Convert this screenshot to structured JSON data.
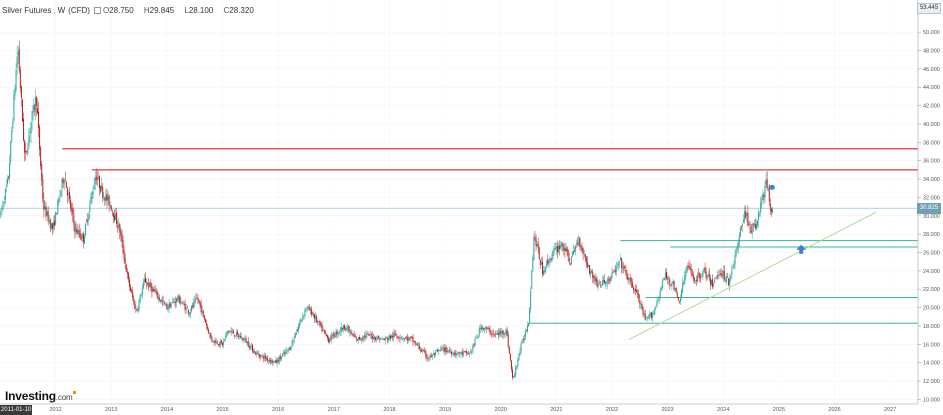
{
  "legend": {
    "instrument": "Silver Futures",
    "interval": "W",
    "source": "(CFD)",
    "open_label": "O",
    "open": "28.750",
    "high_label": "H",
    "high": "29.845",
    "low_label": "L",
    "low": "28.100",
    "close_label": "C",
    "close": "28.320"
  },
  "logo": {
    "text": "Investing",
    "suffix": ".com"
  },
  "price_tags": {
    "top": "53.445",
    "current": "30.825"
  },
  "cursor_date": "2011-01-10",
  "colors": {
    "up": "#26a69a",
    "down": "#b71c1c",
    "resistance": "#e0383e",
    "support": "#3cb39b",
    "trendline": "#b5d89a",
    "current_price_line": "#7fb7c3",
    "arrow": "#3d82c8"
  },
  "chart_data": {
    "type": "candlestick",
    "interval": "weekly",
    "x_ticks": [
      "2012",
      "2013",
      "2014",
      "2015",
      "2016",
      "2017",
      "2018",
      "2019",
      "2020",
      "2021",
      "2022",
      "2023",
      "2024",
      "2025",
      "2026",
      "2027"
    ],
    "y_ticks": [
      "10.000",
      "12.000",
      "14.000",
      "16.000",
      "18.000",
      "20.000",
      "22.000",
      "24.000",
      "26.000",
      "28.000",
      "30.000",
      "32.000",
      "34.000",
      "36.000",
      "38.000",
      "40.000",
      "42.000",
      "44.000",
      "46.000",
      "48.000",
      "50.000"
    ],
    "ylim": [
      9.5,
      53.5
    ],
    "xlim": [
      2011.0,
      2027.5
    ],
    "series": [
      {
        "values": [
          {
            "t": 2011.0,
            "v": 30.0
          },
          {
            "t": 2011.15,
            "v": 34.0
          },
          {
            "t": 2011.32,
            "v": 48.5
          },
          {
            "t": 2011.45,
            "v": 36.0
          },
          {
            "t": 2011.55,
            "v": 40.0
          },
          {
            "t": 2011.65,
            "v": 43.0
          },
          {
            "t": 2011.78,
            "v": 31.0
          },
          {
            "t": 2011.95,
            "v": 28.5
          },
          {
            "t": 2012.15,
            "v": 34.5
          },
          {
            "t": 2012.35,
            "v": 28.5
          },
          {
            "t": 2012.5,
            "v": 27.5
          },
          {
            "t": 2012.72,
            "v": 34.5
          },
          {
            "t": 2012.85,
            "v": 32.5
          },
          {
            "t": 2013.0,
            "v": 31.0
          },
          {
            "t": 2013.15,
            "v": 28.5
          },
          {
            "t": 2013.3,
            "v": 23.0
          },
          {
            "t": 2013.45,
            "v": 19.5
          },
          {
            "t": 2013.6,
            "v": 23.0
          },
          {
            "t": 2013.8,
            "v": 21.5
          },
          {
            "t": 2014.0,
            "v": 20.0
          },
          {
            "t": 2014.2,
            "v": 21.0
          },
          {
            "t": 2014.4,
            "v": 19.5
          },
          {
            "t": 2014.55,
            "v": 21.0
          },
          {
            "t": 2014.8,
            "v": 16.5
          },
          {
            "t": 2015.0,
            "v": 16.0
          },
          {
            "t": 2015.1,
            "v": 17.5
          },
          {
            "t": 2015.4,
            "v": 16.5
          },
          {
            "t": 2015.6,
            "v": 15.0
          },
          {
            "t": 2015.95,
            "v": 14.0
          },
          {
            "t": 2016.2,
            "v": 15.5
          },
          {
            "t": 2016.5,
            "v": 20.0
          },
          {
            "t": 2016.6,
            "v": 19.5
          },
          {
            "t": 2016.9,
            "v": 16.5
          },
          {
            "t": 2017.2,
            "v": 18.0
          },
          {
            "t": 2017.4,
            "v": 16.5
          },
          {
            "t": 2017.6,
            "v": 17.0
          },
          {
            "t": 2017.9,
            "v": 16.5
          },
          {
            "t": 2018.1,
            "v": 17.0
          },
          {
            "t": 2018.4,
            "v": 16.5
          },
          {
            "t": 2018.7,
            "v": 14.5
          },
          {
            "t": 2018.95,
            "v": 15.5
          },
          {
            "t": 2019.2,
            "v": 15.0
          },
          {
            "t": 2019.45,
            "v": 15.0
          },
          {
            "t": 2019.65,
            "v": 18.0
          },
          {
            "t": 2019.9,
            "v": 17.0
          },
          {
            "t": 2020.1,
            "v": 17.5
          },
          {
            "t": 2020.22,
            "v": 12.0
          },
          {
            "t": 2020.35,
            "v": 15.5
          },
          {
            "t": 2020.5,
            "v": 18.5
          },
          {
            "t": 2020.6,
            "v": 28.0
          },
          {
            "t": 2020.75,
            "v": 24.0
          },
          {
            "t": 2020.95,
            "v": 26.0
          },
          {
            "t": 2021.1,
            "v": 27.0
          },
          {
            "t": 2021.25,
            "v": 25.0
          },
          {
            "t": 2021.4,
            "v": 27.5
          },
          {
            "t": 2021.6,
            "v": 24.0
          },
          {
            "t": 2021.75,
            "v": 22.5
          },
          {
            "t": 2021.95,
            "v": 23.0
          },
          {
            "t": 2022.15,
            "v": 25.0
          },
          {
            "t": 2022.3,
            "v": 23.0
          },
          {
            "t": 2022.45,
            "v": 21.5
          },
          {
            "t": 2022.6,
            "v": 18.5
          },
          {
            "t": 2022.75,
            "v": 19.5
          },
          {
            "t": 2022.95,
            "v": 23.5
          },
          {
            "t": 2023.1,
            "v": 22.5
          },
          {
            "t": 2023.2,
            "v": 20.5
          },
          {
            "t": 2023.35,
            "v": 24.5
          },
          {
            "t": 2023.5,
            "v": 23.0
          },
          {
            "t": 2023.65,
            "v": 24.0
          },
          {
            "t": 2023.8,
            "v": 22.5
          },
          {
            "t": 2023.95,
            "v": 24.0
          },
          {
            "t": 2024.1,
            "v": 22.8
          },
          {
            "t": 2024.25,
            "v": 26.5
          },
          {
            "t": 2024.38,
            "v": 30.5
          },
          {
            "t": 2024.5,
            "v": 28.5
          },
          {
            "t": 2024.6,
            "v": 29.0
          },
          {
            "t": 2024.7,
            "v": 32.0
          },
          {
            "t": 2024.78,
            "v": 33.5
          },
          {
            "t": 2024.85,
            "v": 31.0
          },
          {
            "t": 2024.9,
            "v": 30.8
          }
        ]
      }
    ],
    "resistance_levels": [
      37.3,
      35.0
    ],
    "support_levels": [
      27.3,
      26.6,
      21.1,
      18.3
    ],
    "trendline": {
      "from": {
        "t": 2022.3,
        "v": 16.5
      },
      "to": {
        "t": 2026.75,
        "v": 30.4
      }
    },
    "current_price": 30.825
  }
}
